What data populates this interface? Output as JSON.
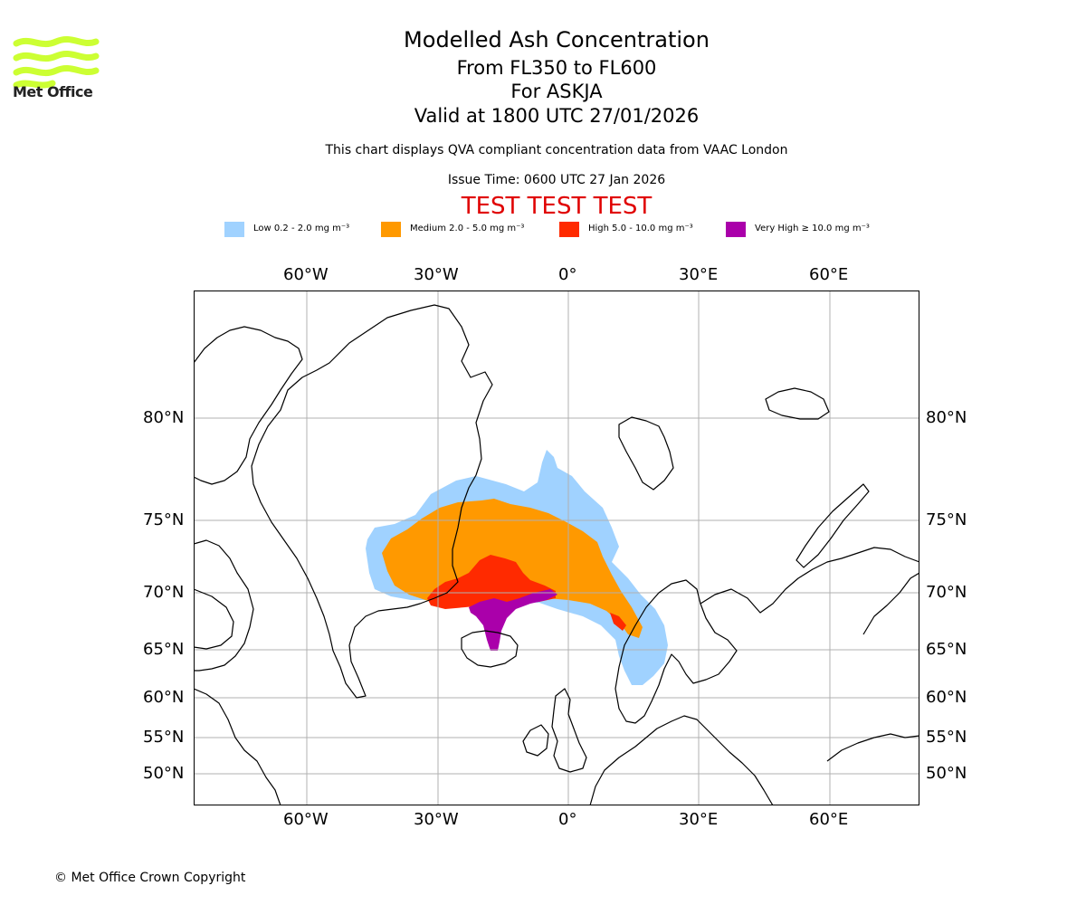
{
  "logo": {
    "text": "Met Office",
    "color": "#ccff33"
  },
  "header": {
    "title": "Modelled Ash Concentration",
    "levels": "From FL350 to FL600",
    "volcano": "For ASKJA",
    "valid": "Valid at 1800 UTC 27/01/2026",
    "compliance": "This chart displays QVA compliant concentration data from VAAC London",
    "issue_time": "Issue Time: 0600 UTC 27 Jan 2026",
    "test_banner": "TEST TEST TEST"
  },
  "legend": [
    {
      "label": "Low 0.2 - 2.0 mg m⁻³",
      "color": "#a0d2ff"
    },
    {
      "label": "Medium 2.0 - 5.0 mg m⁻³",
      "color": "#ff9900"
    },
    {
      "label": "High 5.0 - 10.0 mg m⁻³",
      "color": "#ff2a00"
    },
    {
      "label": "Very High ≥ 10.0 mg m⁻³",
      "color": "#aa00aa"
    }
  ],
  "axes": {
    "longitude_labels": [
      "60°W",
      "30°W",
      "0°",
      "30°E",
      "60°E"
    ],
    "latitude_labels": [
      "80°N",
      "75°N",
      "70°N",
      "65°N",
      "60°N",
      "55°N",
      "50°N"
    ]
  },
  "footer": {
    "copyright": "© Met Office Crown Copyright"
  }
}
